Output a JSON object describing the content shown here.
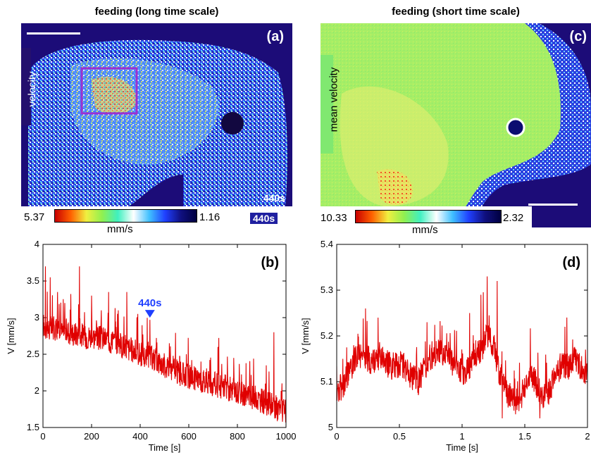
{
  "panel_a": {
    "title": "feeding (long time scale)",
    "letter": "(a)",
    "side_label": "velocity",
    "timestamp": "440s",
    "colorbar": {
      "max_label": "5.37",
      "min_label": "1.16",
      "unit": "mm/s"
    }
  },
  "panel_c": {
    "title": "feeding (short time scale)",
    "letter": "(c)",
    "side_label": "mean velocity",
    "colorbar": {
      "max_label": "10.33",
      "min_label": "2.32",
      "unit": "mm/s"
    }
  },
  "colors": {
    "line": "#e00000",
    "marker": "#1f3fff",
    "box": "#9b30d0"
  },
  "chart_data": [
    {
      "panel": "b",
      "type": "line",
      "letter": "(b)",
      "xlabel": "Time [s]",
      "ylabel": "V [mm/s]",
      "xlim": [
        0,
        1000
      ],
      "ylim": [
        1.5,
        4
      ],
      "xticks": [
        0,
        200,
        400,
        600,
        800,
        1000
      ],
      "yticks": [
        1.5,
        2,
        2.5,
        3,
        3.5,
        4
      ],
      "ytick_labels": [
        "1.5",
        "2",
        "2.5",
        "3",
        "3.5",
        "4"
      ],
      "annotation": {
        "label": "440s",
        "x": 440,
        "y": 2.97
      },
      "series": [
        {
          "x": [
            0,
            25,
            50,
            75,
            100,
            125,
            150,
            175,
            200,
            225,
            250,
            275,
            300,
            325,
            350,
            375,
            400,
            425,
            450,
            475,
            500,
            525,
            550,
            575,
            600,
            625,
            650,
            675,
            700,
            725,
            750,
            775,
            800,
            825,
            850,
            875,
            900,
            925,
            950,
            975,
            1000
          ],
          "y": [
            2.9,
            2.85,
            2.85,
            2.8,
            2.82,
            2.78,
            2.78,
            2.74,
            2.75,
            2.72,
            2.72,
            2.68,
            2.66,
            2.62,
            2.58,
            2.54,
            2.5,
            2.46,
            2.45,
            2.4,
            2.35,
            2.3,
            2.26,
            2.22,
            2.2,
            2.17,
            2.14,
            2.12,
            2.1,
            2.07,
            2.05,
            2.02,
            1.99,
            1.96,
            1.93,
            1.9,
            1.87,
            1.83,
            1.78,
            1.74,
            1.7
          ],
          "spikes": [
            {
              "x": 10,
              "y": 3.7
            },
            {
              "x": 30,
              "y": 3.55
            },
            {
              "x": 60,
              "y": 3.35
            },
            {
              "x": 90,
              "y": 3.2
            },
            {
              "x": 150,
              "y": 3.7
            },
            {
              "x": 200,
              "y": 3.3
            },
            {
              "x": 240,
              "y": 3.1
            },
            {
              "x": 270,
              "y": 3.35
            },
            {
              "x": 310,
              "y": 3.1
            },
            {
              "x": 345,
              "y": 3.35
            },
            {
              "x": 390,
              "y": 3.05
            },
            {
              "x": 440,
              "y": 2.97
            },
            {
              "x": 520,
              "y": 2.65
            },
            {
              "x": 590,
              "y": 2.5
            },
            {
              "x": 650,
              "y": 2.4
            },
            {
              "x": 720,
              "y": 2.6
            },
            {
              "x": 785,
              "y": 2.45
            },
            {
              "x": 850,
              "y": 2.2
            },
            {
              "x": 915,
              "y": 2.1
            },
            {
              "x": 950,
              "y": 2.8
            },
            {
              "x": 980,
              "y": 2.0
            }
          ]
        }
      ]
    },
    {
      "panel": "d",
      "type": "line",
      "letter": "(d)",
      "xlabel": "Time [s]",
      "ylabel": "V [mm/s]",
      "xlim": [
        0,
        2
      ],
      "ylim": [
        5,
        5.4
      ],
      "xticks": [
        0,
        0.5,
        1,
        1.5,
        2
      ],
      "yticks": [
        5,
        5.1,
        5.2,
        5.3,
        5.4
      ],
      "xtick_labels": [
        "0",
        "0.5",
        "1",
        "1.5",
        "2"
      ],
      "ytick_labels": [
        "5",
        "5.1",
        "5.2",
        "5.3",
        "5.4"
      ],
      "series": [
        {
          "x": [
            0,
            0.05,
            0.1,
            0.15,
            0.2,
            0.25,
            0.3,
            0.35,
            0.4,
            0.45,
            0.5,
            0.55,
            0.6,
            0.65,
            0.7,
            0.75,
            0.8,
            0.85,
            0.9,
            0.95,
            1.0,
            1.05,
            1.1,
            1.15,
            1.2,
            1.25,
            1.3,
            1.35,
            1.4,
            1.45,
            1.5,
            1.55,
            1.6,
            1.65,
            1.7,
            1.75,
            1.8,
            1.85,
            1.9,
            1.95,
            2.0
          ],
          "y": [
            5.08,
            5.09,
            5.12,
            5.15,
            5.16,
            5.15,
            5.14,
            5.16,
            5.14,
            5.13,
            5.14,
            5.13,
            5.11,
            5.1,
            5.13,
            5.15,
            5.17,
            5.16,
            5.15,
            5.13,
            5.12,
            5.13,
            5.16,
            5.17,
            5.2,
            5.18,
            5.12,
            5.08,
            5.06,
            5.05,
            5.09,
            5.12,
            5.09,
            5.07,
            5.08,
            5.12,
            5.14,
            5.13,
            5.15,
            5.13,
            5.12
          ],
          "spikes": [
            {
              "x": 0.23,
              "y": 5.26
            },
            {
              "x": 0.33,
              "y": 5.24
            },
            {
              "x": 0.72,
              "y": 5.23
            },
            {
              "x": 1.06,
              "y": 5.25
            },
            {
              "x": 1.15,
              "y": 5.29
            },
            {
              "x": 1.2,
              "y": 5.33
            },
            {
              "x": 1.28,
              "y": 5.32
            },
            {
              "x": 1.32,
              "y": 5.02
            },
            {
              "x": 1.62,
              "y": 5.02
            },
            {
              "x": 1.82,
              "y": 5.22
            }
          ]
        }
      ]
    }
  ]
}
